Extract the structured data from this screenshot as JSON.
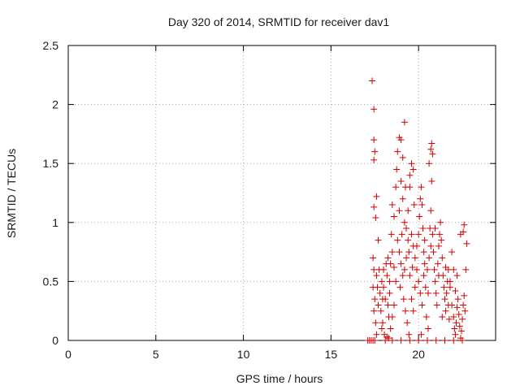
{
  "chart_data": {
    "type": "scatter",
    "title": "Day 320 of 2014, SRMTID for receiver dav1",
    "xlabel": "GPS time / hours",
    "ylabel": "SRMTID / TECUs",
    "xlim": [
      0,
      24.4
    ],
    "ylim": [
      0,
      2.5
    ],
    "xticks": [
      0,
      5,
      10,
      15,
      20
    ],
    "xtick_labels": [
      "0",
      "5",
      "10",
      "15",
      "20"
    ],
    "yticks": [
      0,
      0.5,
      1,
      1.5,
      2,
      2.5
    ],
    "ytick_labels": [
      "0",
      "0.5",
      "1",
      "1.5",
      "2",
      "2.5"
    ],
    "grid": true,
    "marker": "plus",
    "color": "#d00000",
    "series": [
      {
        "name": "dav1",
        "points": [
          [
            17.1,
            0.0
          ],
          [
            17.2,
            0.0
          ],
          [
            17.3,
            0.0
          ],
          [
            17.4,
            0.0
          ],
          [
            17.5,
            0.0
          ],
          [
            17.35,
            2.2
          ],
          [
            17.45,
            1.96
          ],
          [
            17.45,
            1.7
          ],
          [
            17.5,
            1.6
          ],
          [
            17.45,
            1.53
          ],
          [
            17.45,
            1.13
          ],
          [
            17.6,
            1.22
          ],
          [
            17.55,
            1.04
          ],
          [
            17.7,
            0.85
          ],
          [
            17.4,
            0.7
          ],
          [
            17.45,
            0.6
          ],
          [
            17.6,
            0.55
          ],
          [
            17.4,
            0.45
          ],
          [
            17.5,
            0.35
          ],
          [
            17.45,
            0.25
          ],
          [
            17.55,
            0.15
          ],
          [
            17.6,
            0.05
          ],
          [
            17.7,
            0.3
          ],
          [
            17.8,
            0.4
          ],
          [
            17.9,
            0.5
          ],
          [
            18.0,
            0.45
          ],
          [
            17.85,
            0.25
          ],
          [
            17.95,
            0.15
          ],
          [
            18.1,
            0.35
          ],
          [
            18.2,
            0.55
          ],
          [
            18.0,
            0.6
          ],
          [
            17.9,
            0.1
          ],
          [
            18.05,
            0.05
          ],
          [
            18.3,
            0.2
          ],
          [
            18.35,
            0.4
          ],
          [
            18.25,
            0.3
          ],
          [
            18.4,
            0.65
          ],
          [
            18.5,
            0.75
          ],
          [
            18.45,
            0.9
          ],
          [
            18.6,
            1.05
          ],
          [
            18.5,
            1.15
          ],
          [
            18.7,
            1.3
          ],
          [
            18.75,
            1.45
          ],
          [
            18.8,
            1.6
          ],
          [
            18.9,
            1.72
          ],
          [
            19.0,
            1.7
          ],
          [
            19.1,
            1.55
          ],
          [
            19.2,
            1.85
          ],
          [
            19.0,
            1.35
          ],
          [
            19.1,
            1.2
          ],
          [
            18.9,
            1.1
          ],
          [
            19.2,
            1.0
          ],
          [
            19.3,
            0.95
          ],
          [
            19.4,
            1.1
          ],
          [
            19.5,
            1.4
          ],
          [
            19.6,
            1.5
          ],
          [
            19.7,
            1.45
          ],
          [
            19.5,
            1.3
          ],
          [
            19.6,
            0.9
          ],
          [
            19.7,
            0.8
          ],
          [
            19.8,
            0.7
          ],
          [
            19.9,
            0.6
          ],
          [
            18.8,
            0.85
          ],
          [
            18.9,
            0.75
          ],
          [
            19.0,
            0.65
          ],
          [
            19.1,
            0.55
          ],
          [
            18.7,
            0.5
          ],
          [
            18.6,
            0.3
          ],
          [
            18.5,
            0.2
          ],
          [
            18.4,
            0.1
          ],
          [
            18.3,
            0.02
          ],
          [
            18.2,
            0.03
          ],
          [
            18.1,
            0.0
          ],
          [
            18.5,
            0.0
          ],
          [
            19.0,
            0.0
          ],
          [
            19.5,
            0.0
          ],
          [
            19.3,
            0.7
          ],
          [
            19.4,
            0.85
          ],
          [
            19.2,
            0.6
          ],
          [
            19.5,
            0.55
          ],
          [
            19.6,
            0.35
          ],
          [
            19.7,
            0.25
          ],
          [
            19.8,
            0.45
          ],
          [
            19.9,
            0.8
          ],
          [
            20.0,
            0.9
          ],
          [
            20.05,
            1.05
          ],
          [
            20.1,
            1.2
          ],
          [
            20.15,
            1.3
          ],
          [
            20.2,
            1.15
          ],
          [
            20.25,
            0.95
          ],
          [
            20.3,
            0.75
          ],
          [
            20.35,
            0.65
          ],
          [
            20.0,
            0.5
          ],
          [
            20.1,
            0.4
          ],
          [
            20.2,
            0.3
          ],
          [
            20.3,
            0.55
          ],
          [
            20.4,
            0.45
          ],
          [
            20.5,
            0.6
          ],
          [
            20.6,
            0.7
          ],
          [
            20.7,
            0.8
          ],
          [
            20.65,
            0.95
          ],
          [
            20.7,
            1.1
          ],
          [
            20.75,
            1.35
          ],
          [
            20.7,
            1.62
          ],
          [
            20.75,
            1.67
          ],
          [
            20.8,
            1.58
          ],
          [
            20.6,
            1.5
          ],
          [
            20.8,
            0.9
          ],
          [
            20.85,
            0.75
          ],
          [
            20.9,
            0.6
          ],
          [
            20.95,
            0.5
          ],
          [
            21.0,
            0.4
          ],
          [
            21.05,
            0.3
          ],
          [
            21.1,
            0.65
          ],
          [
            21.15,
            0.8
          ],
          [
            21.2,
            0.9
          ],
          [
            21.25,
            1.0
          ],
          [
            21.3,
            0.85
          ],
          [
            21.35,
            0.7
          ],
          [
            21.4,
            0.55
          ],
          [
            21.45,
            0.45
          ],
          [
            21.5,
            0.35
          ],
          [
            21.55,
            0.25
          ],
          [
            21.6,
            0.4
          ],
          [
            21.65,
            0.5
          ],
          [
            21.7,
            0.6
          ],
          [
            21.8,
            0.45
          ],
          [
            21.9,
            0.3
          ],
          [
            22.0,
            0.2
          ],
          [
            22.05,
            0.1
          ],
          [
            22.1,
            0.05
          ],
          [
            22.15,
            0.15
          ],
          [
            22.2,
            0.28
          ],
          [
            22.25,
            0.35
          ],
          [
            22.3,
            0.22
          ],
          [
            22.35,
            0.12
          ],
          [
            22.4,
            0.02
          ],
          [
            22.45,
            0.08
          ],
          [
            22.5,
            0.18
          ],
          [
            22.55,
            0.3
          ],
          [
            22.6,
            0.38
          ],
          [
            22.65,
            0.25
          ],
          [
            22.7,
            0.6
          ],
          [
            22.75,
            0.82
          ],
          [
            22.6,
            0.98
          ],
          [
            22.55,
            0.92
          ],
          [
            22.4,
            0.9
          ],
          [
            22.2,
            0.55
          ],
          [
            22.0,
            0.6
          ],
          [
            21.9,
            0.75
          ],
          [
            21.8,
            0.5
          ],
          [
            21.7,
            0.3
          ],
          [
            20.0,
            0.0
          ],
          [
            20.5,
            0.0
          ],
          [
            21.0,
            0.0
          ],
          [
            21.5,
            0.0
          ],
          [
            22.0,
            0.0
          ],
          [
            22.5,
            0.0
          ],
          [
            18.15,
            0.65
          ],
          [
            18.25,
            0.7
          ],
          [
            19.15,
            0.35
          ],
          [
            19.25,
            0.25
          ],
          [
            19.35,
            0.15
          ],
          [
            19.45,
            0.05
          ],
          [
            20.45,
            0.2
          ],
          [
            20.55,
            0.1
          ],
          [
            17.75,
            0.6
          ],
          [
            17.65,
            0.45
          ],
          [
            17.95,
            0.35
          ],
          [
            18.35,
            0.5
          ],
          [
            18.6,
            0.62
          ],
          [
            18.95,
            0.45
          ],
          [
            19.05,
            0.9
          ],
          [
            19.25,
            1.3
          ],
          [
            19.45,
            0.75
          ],
          [
            19.65,
            0.62
          ],
          [
            19.75,
            1.15
          ],
          [
            20.15,
            0.05
          ],
          [
            20.35,
            0.85
          ],
          [
            20.55,
            0.4
          ],
          [
            20.95,
            0.95
          ],
          [
            21.15,
            0.55
          ],
          [
            21.35,
            0.2
          ],
          [
            21.55,
            0.62
          ],
          [
            21.75,
            0.18
          ],
          [
            22.1,
            0.42
          ]
        ]
      }
    ]
  }
}
